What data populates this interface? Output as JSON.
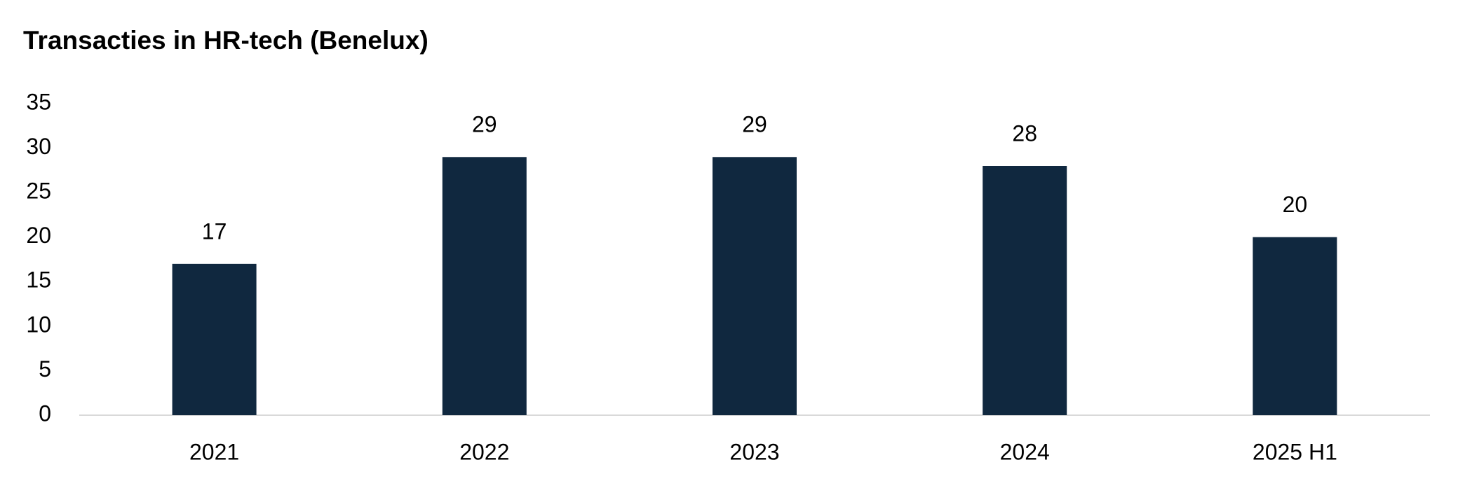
{
  "chart_data": {
    "type": "bar",
    "title": "Transacties in HR-tech (Benelux)",
    "categories": [
      "2021",
      "2022",
      "2023",
      "2024",
      "2025 H1"
    ],
    "values": [
      17,
      29,
      29,
      28,
      20
    ],
    "color": "#10283f",
    "ylim": [
      0,
      35
    ],
    "yticks": [
      0,
      5,
      10,
      15,
      20,
      25,
      30,
      35
    ],
    "grid": false
  }
}
